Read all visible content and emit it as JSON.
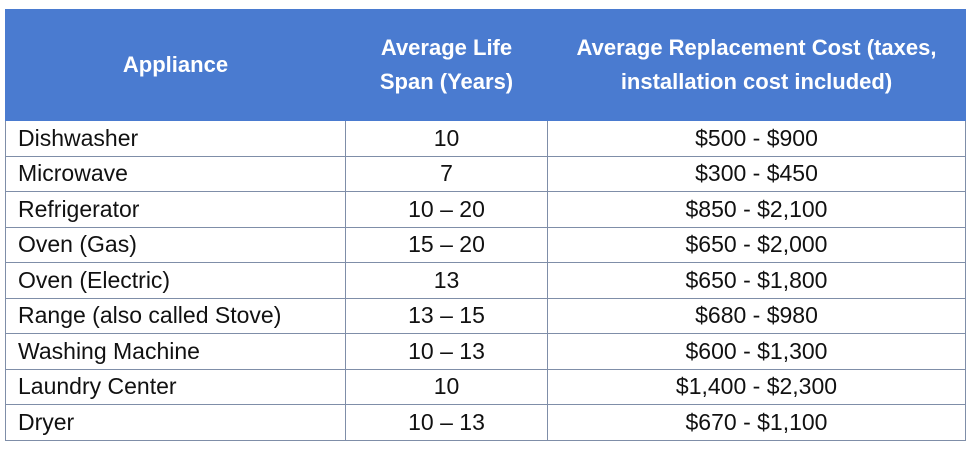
{
  "table": {
    "headers": [
      "Appliance",
      "Average Life Span (Years)",
      "Average Replacement Cost (taxes, installation cost included)"
    ],
    "rows": [
      [
        "Dishwasher",
        "10",
        "$500 - $900"
      ],
      [
        "Microwave",
        "7",
        "$300 - $450"
      ],
      [
        "Refrigerator",
        "10 – 20",
        "$850 - $2,100"
      ],
      [
        "Oven (Gas)",
        "15 – 20",
        "$650 - $2,000"
      ],
      [
        "Oven (Electric)",
        "13",
        "$650 - $1,800"
      ],
      [
        "Range (also called Stove)",
        "13 – 15",
        "$680 - $980"
      ],
      [
        "Washing Machine",
        "10 – 13",
        "$600 - $1,300"
      ],
      [
        "Laundry Center",
        "10",
        "$1,400 - $2,300"
      ],
      [
        "Dryer",
        "10 – 13",
        "$670 - $1,100"
      ]
    ]
  },
  "colors": {
    "header_background": "#4a7bd0",
    "header_text": "#ffffff",
    "grid_lines": "#7f8ea8"
  }
}
